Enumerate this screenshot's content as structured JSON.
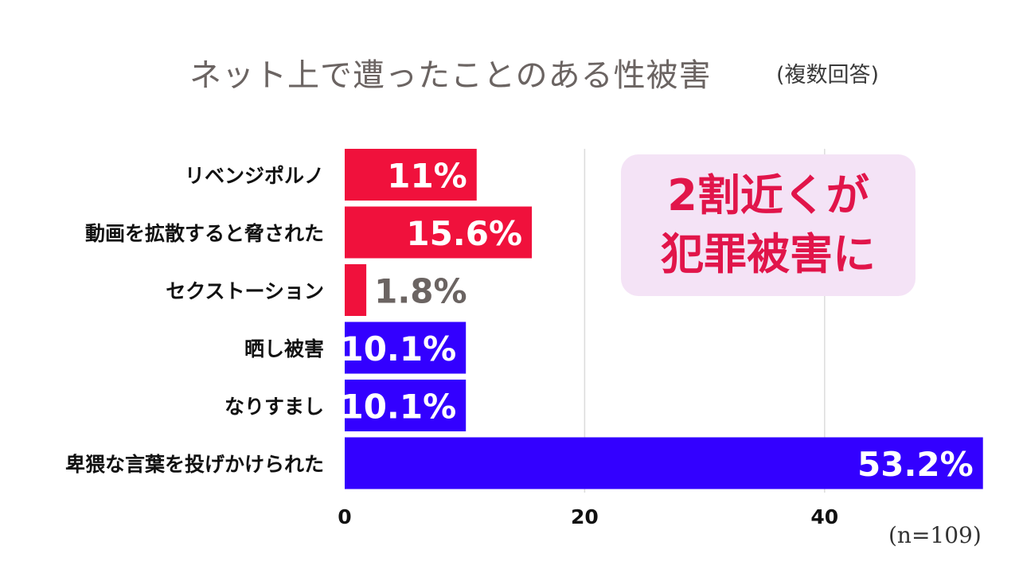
{
  "title": "ネット上で遭ったことのある性被害",
  "subtitle": "(複数回答)",
  "callout": {
    "line1": "2割近くが",
    "line2": "犯罪被害に"
  },
  "note": "(n=109)",
  "colors": {
    "crime": "#f0113c",
    "other": "#3300ff",
    "grid": "#dcdcdc",
    "label_outside": "#6b6462"
  },
  "chart_data": {
    "type": "bar",
    "orientation": "horizontal",
    "categories": [
      "リベンジポルノ",
      "動画を拡散すると脅された",
      "セクストーション",
      "晒し被害",
      "なりすまし",
      "卑猥な言葉を投げかけられた"
    ],
    "values": [
      11,
      15.6,
      1.8,
      10.1,
      10.1,
      53.2
    ],
    "value_labels": [
      "11%",
      "15.6%",
      "1.8%",
      "10.1%",
      "10.1%",
      "53.2%"
    ],
    "bar_colors": [
      "crime",
      "crime",
      "crime",
      "other",
      "other",
      "other"
    ],
    "xticks": [
      0,
      20,
      40
    ],
    "xlim": [
      0,
      54
    ],
    "grid": true
  }
}
